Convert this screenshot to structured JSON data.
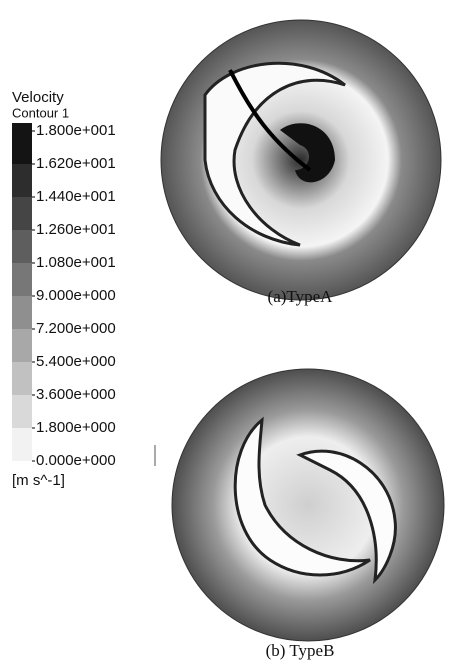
{
  "legend": {
    "title": "Velocity",
    "subtitle": "Contour 1",
    "ticks": [
      "1.800e+001",
      "1.620e+001",
      "1.440e+001",
      "1.260e+001",
      "1.080e+001",
      "9.000e+000",
      "7.200e+000",
      "5.400e+000",
      "3.600e+000",
      "1.800e+000",
      "0.000e+000"
    ],
    "unit": "[m s^-1]"
  },
  "figures": [
    {
      "caption": "(a)TypeA"
    },
    {
      "caption": "(b)  TypeB"
    }
  ]
}
